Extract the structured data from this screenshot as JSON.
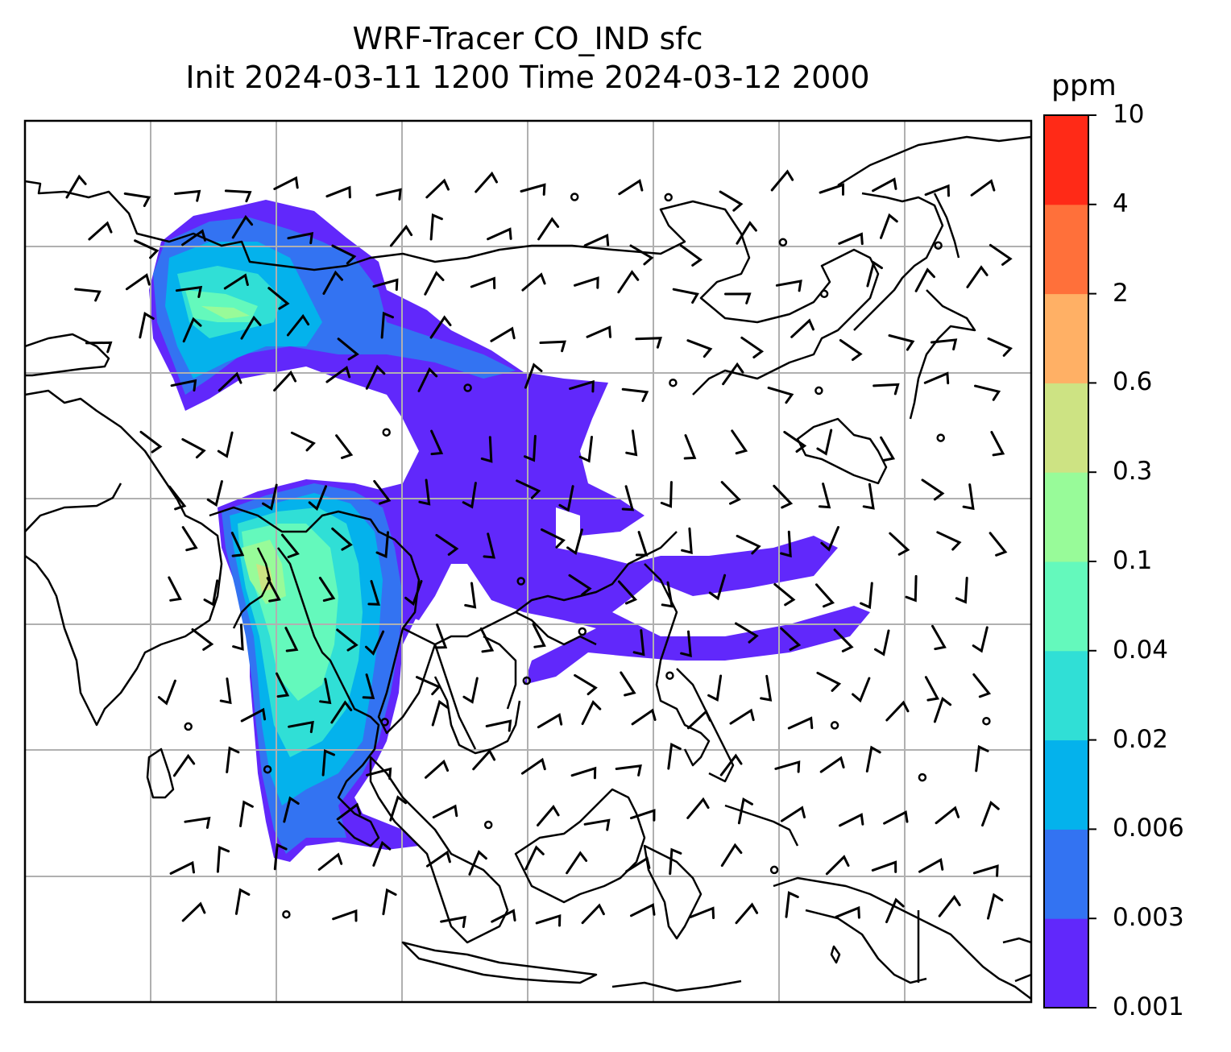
{
  "title": {
    "line1": "WRF-Tracer CO_IND sfc",
    "line2": "Init 2024-03-11 1200 Time 2024-03-12 2000"
  },
  "colorbar": {
    "unit": "ppm",
    "ticks": [
      "0.001",
      "0.003",
      "0.006",
      "0.02",
      "0.04",
      "0.1",
      "0.3",
      "0.6",
      "2",
      "4",
      "10"
    ],
    "colors": [
      "#6128fb",
      "#3373f2",
      "#04b2ec",
      "#30dfd6",
      "#64f9bc",
      "#98fb99",
      "#cde383",
      "#ffb065",
      "#ff703a",
      "#ff2a17"
    ]
  },
  "map": {
    "projection": "rectangular",
    "gridlines": true,
    "coastlines": true,
    "wind_barbs": true
  }
}
